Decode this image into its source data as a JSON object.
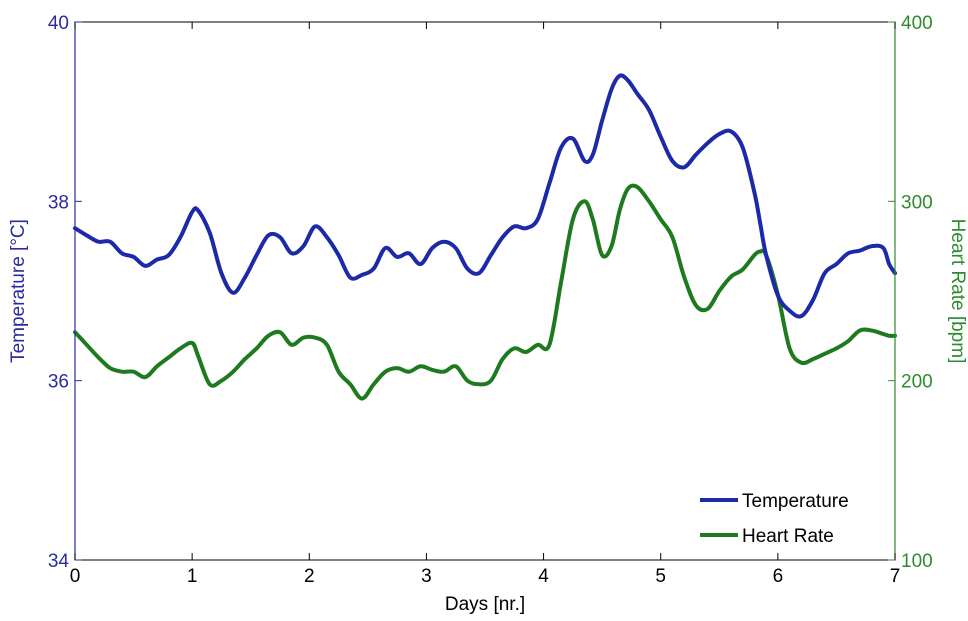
{
  "chart_data": {
    "type": "line",
    "xlabel": "Days [nr.]",
    "ylabel_left": "Temperature [°C]",
    "ylabel_right": "Heart Rate [bpm]",
    "xlim": [
      0,
      7
    ],
    "ylim_left": [
      34,
      40
    ],
    "ylim_right": [
      100,
      400
    ],
    "x_ticks": [
      0,
      1,
      2,
      3,
      4,
      5,
      6,
      7
    ],
    "y_ticks_left": [
      34,
      36,
      38,
      40
    ],
    "y_ticks_right": [
      100,
      200,
      300,
      400
    ],
    "grid": false,
    "legend_position": "bottom-right",
    "colors": {
      "left_axis": "#2b2ba0",
      "right_axis": "#2e8b2e",
      "temperature": "#1c2aa8",
      "heart_rate": "#1e7a1e"
    },
    "series": [
      {
        "name": "Temperature",
        "axis": "left",
        "x": [
          0,
          0.1,
          0.2,
          0.3,
          0.4,
          0.5,
          0.6,
          0.7,
          0.8,
          0.9,
          1.0,
          1.05,
          1.15,
          1.25,
          1.35,
          1.45,
          1.55,
          1.65,
          1.75,
          1.85,
          1.95,
          2.05,
          2.15,
          2.25,
          2.35,
          2.45,
          2.55,
          2.65,
          2.75,
          2.85,
          2.95,
          3.05,
          3.15,
          3.25,
          3.35,
          3.45,
          3.55,
          3.65,
          3.75,
          3.85,
          3.95,
          4.05,
          4.15,
          4.25,
          4.35,
          4.42,
          4.5,
          4.58,
          4.65,
          4.72,
          4.8,
          4.9,
          5.0,
          5.1,
          5.2,
          5.3,
          5.4,
          5.5,
          5.6,
          5.7,
          5.8,
          5.85,
          5.9,
          6.0,
          6.1,
          6.2,
          6.3,
          6.4,
          6.5,
          6.6,
          6.7,
          6.8,
          6.9,
          6.95,
          7.0
        ],
        "values": [
          37.7,
          37.62,
          37.55,
          37.55,
          37.42,
          37.38,
          37.28,
          37.35,
          37.4,
          37.6,
          37.88,
          37.9,
          37.65,
          37.2,
          36.98,
          37.15,
          37.4,
          37.62,
          37.6,
          37.42,
          37.5,
          37.72,
          37.6,
          37.4,
          37.15,
          37.18,
          37.25,
          37.48,
          37.38,
          37.42,
          37.3,
          37.48,
          37.55,
          37.48,
          37.25,
          37.2,
          37.4,
          37.6,
          37.72,
          37.7,
          37.8,
          38.2,
          38.6,
          38.7,
          38.45,
          38.52,
          38.9,
          39.25,
          39.4,
          39.35,
          39.2,
          39.02,
          38.72,
          38.45,
          38.38,
          38.52,
          38.65,
          38.75,
          38.78,
          38.6,
          38.1,
          37.75,
          37.4,
          36.95,
          36.78,
          36.72,
          36.9,
          37.2,
          37.3,
          37.42,
          37.45,
          37.5,
          37.48,
          37.3,
          37.2
        ]
      },
      {
        "name": "Heart Rate",
        "axis": "right",
        "x": [
          0,
          0.1,
          0.2,
          0.3,
          0.4,
          0.5,
          0.6,
          0.7,
          0.8,
          0.9,
          1.0,
          1.05,
          1.15,
          1.25,
          1.35,
          1.45,
          1.55,
          1.65,
          1.75,
          1.85,
          1.95,
          2.05,
          2.15,
          2.25,
          2.35,
          2.45,
          2.55,
          2.65,
          2.75,
          2.85,
          2.95,
          3.05,
          3.15,
          3.25,
          3.35,
          3.45,
          3.55,
          3.65,
          3.75,
          3.85,
          3.95,
          4.05,
          4.15,
          4.25,
          4.35,
          4.42,
          4.5,
          4.58,
          4.65,
          4.72,
          4.8,
          4.9,
          5.0,
          5.1,
          5.2,
          5.3,
          5.4,
          5.5,
          5.6,
          5.7,
          5.8,
          5.85,
          5.9,
          6.0,
          6.1,
          6.2,
          6.3,
          6.4,
          6.5,
          6.6,
          6.7,
          6.8,
          6.9,
          6.95,
          7.0
        ],
        "values": [
          227,
          220,
          213,
          207,
          205,
          205,
          202,
          208,
          213,
          218,
          221,
          214,
          198,
          200,
          205,
          212,
          218,
          225,
          227,
          220,
          224,
          224,
          220,
          205,
          198,
          190,
          198,
          205,
          207,
          205,
          208,
          206,
          205,
          208,
          200,
          198,
          200,
          212,
          218,
          216,
          220,
          220,
          255,
          290,
          300,
          290,
          270,
          275,
          295,
          307,
          308,
          300,
          290,
          280,
          258,
          242,
          240,
          250,
          258,
          262,
          270,
          272,
          270,
          248,
          218,
          210,
          212,
          215,
          218,
          222,
          228,
          228,
          226,
          225,
          225
        ]
      }
    ]
  }
}
